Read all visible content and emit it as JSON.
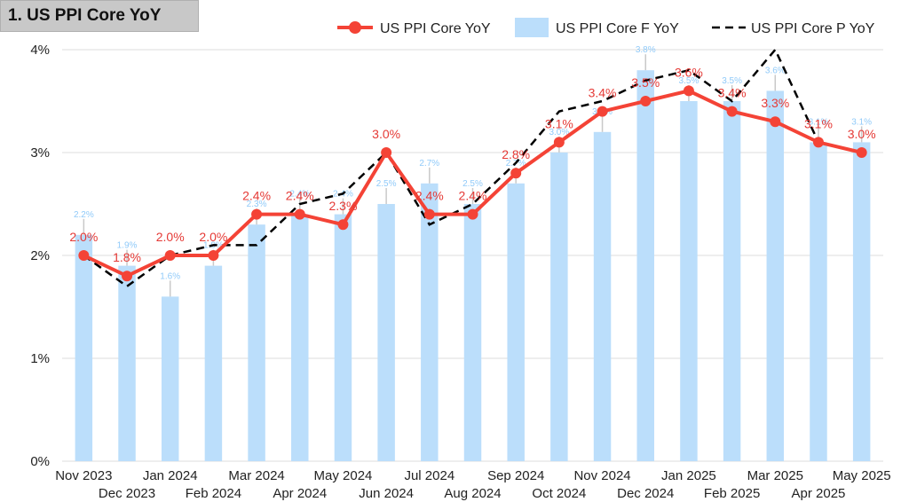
{
  "header": {
    "title": "1. US PPI Core YoY"
  },
  "chart_data": {
    "type": "bar",
    "ylim": [
      0,
      4
    ],
    "yticks": [
      {
        "v": 0,
        "label": "0%"
      },
      {
        "v": 1,
        "label": "1%"
      },
      {
        "v": 2,
        "label": "2%"
      },
      {
        "v": 3,
        "label": "3%"
      },
      {
        "v": 4,
        "label": "4%"
      }
    ],
    "legend_position": "top-right",
    "categories": [
      "Nov 2023",
      "Dec 2023",
      "Jan 2024",
      "Feb 2024",
      "Mar 2024",
      "Apr 2024",
      "May 2024",
      "Jun 2024",
      "Jul 2024",
      "Aug 2024",
      "Sep 2024",
      "Oct 2024",
      "Nov 2024",
      "Dec 2024",
      "Jan 2025",
      "Feb 2025",
      "Mar 2025",
      "Apr 2025",
      "May 2025"
    ],
    "series": [
      {
        "name": "US PPI Core YoY",
        "kind": "line",
        "color": "#f44336",
        "values": [
          2.0,
          1.8,
          2.0,
          2.0,
          2.4,
          2.4,
          2.3,
          3.0,
          2.4,
          2.4,
          2.8,
          3.1,
          3.4,
          3.5,
          3.6,
          3.4,
          3.3,
          3.1,
          3.0
        ],
        "labels": [
          "2.0%",
          "1.8%",
          "2.0%",
          "2.0%",
          "2.4%",
          "2.4%",
          "2.3%",
          "3.0%",
          "2.4%",
          "2.4%",
          "2.8%",
          "3.1%",
          "3.4%",
          "3.5%",
          "3.6%",
          "3.4%",
          "3.3%",
          "3.1%",
          "3.0%"
        ]
      },
      {
        "name": "US PPI Core F YoY",
        "kind": "bar",
        "color": "#bbdefb",
        "values": [
          2.2,
          1.9,
          1.6,
          1.9,
          2.3,
          2.4,
          2.4,
          2.5,
          2.7,
          2.5,
          2.7,
          3.0,
          3.2,
          3.8,
          3.5,
          3.5,
          3.6,
          3.1,
          3.1
        ],
        "labels": [
          "2.2%",
          "1.9%",
          "1.6%",
          "1.9%",
          "2.3%",
          "2.4%",
          "2.4%",
          "2.5%",
          "2.7%",
          "2.5%",
          "2.7%",
          "3.0%",
          "3.2%",
          "3.8%",
          "3.5%",
          "3.5%",
          "3.6%",
          "3.1%",
          "3.1%"
        ]
      },
      {
        "name": "US PPI Core P YoY",
        "kind": "dashed-line",
        "color": "#000000",
        "values": [
          2.0,
          1.7,
          2.0,
          2.1,
          2.1,
          2.5,
          2.6,
          3.0,
          2.3,
          2.5,
          2.9,
          3.4,
          3.5,
          3.7,
          3.8,
          3.5,
          4.0,
          3.1,
          3.0
        ]
      }
    ]
  }
}
